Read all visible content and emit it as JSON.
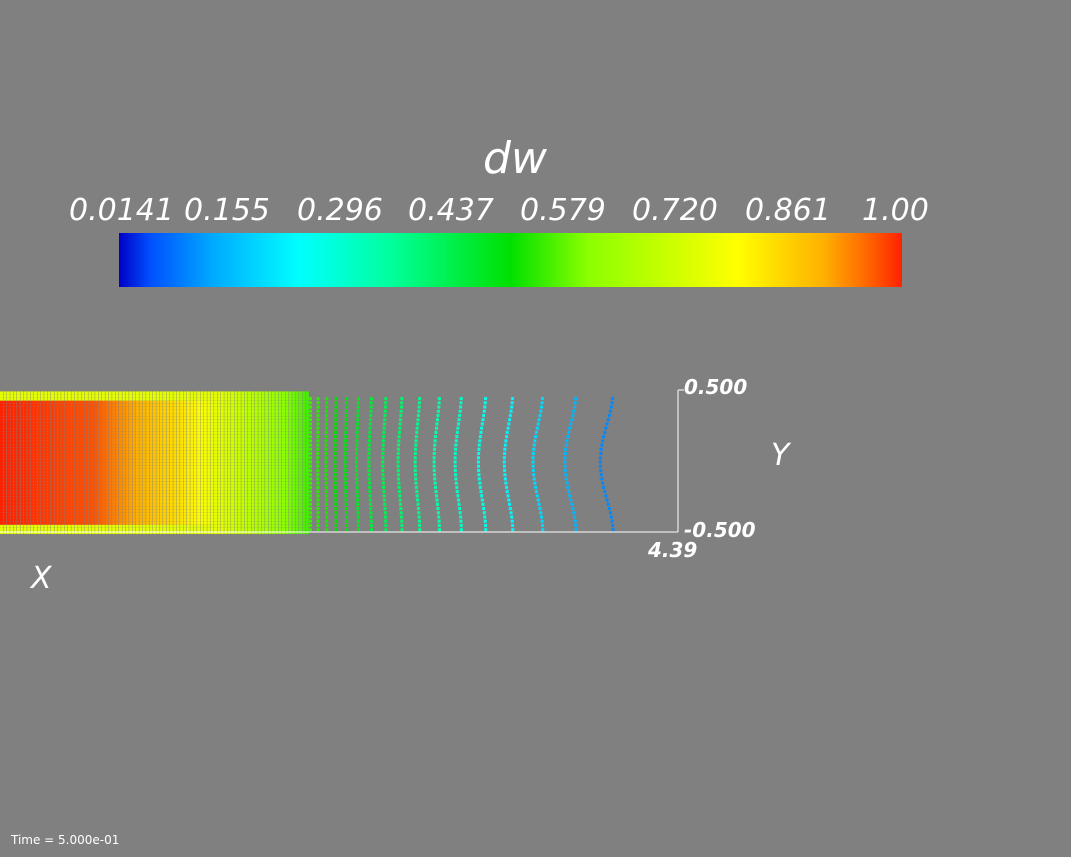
{
  "chart_data": {
    "type": "heatmap",
    "title": "dw",
    "colorbar": {
      "field": "dw",
      "range": [
        0.0141,
        1.0
      ],
      "tick_labels": [
        "0.0141",
        "0.155",
        "0.296",
        "0.437",
        "0.579",
        "0.720",
        "0.861",
        "1.00"
      ],
      "colormap": [
        "#0000c8",
        "#00aaff",
        "#00ffff",
        "#00e000",
        "#ffff00",
        "#ff2000"
      ]
    },
    "axes": {
      "x_label": "X",
      "y_label": "Y",
      "x_tick_label": "4.39",
      "y_tick_labels": [
        "0.500",
        "-0.500"
      ],
      "xlim_visible_end": 4.39,
      "ylim": [
        -0.5,
        0.5
      ]
    },
    "field_profile": {
      "x": [
        0.0,
        0.6,
        1.2,
        2.0,
        3.2,
        4.39
      ],
      "dw": [
        1.0,
        0.97,
        0.82,
        0.55,
        0.25,
        0.02
      ]
    }
  },
  "footer": {
    "time_label": "Time = 5.000e-01"
  }
}
